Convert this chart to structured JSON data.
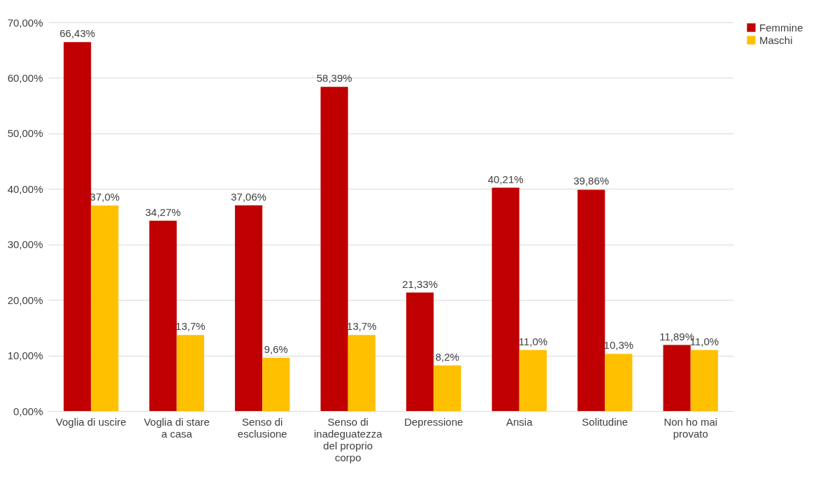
{
  "chart_data": {
    "type": "bar",
    "categories": [
      "Voglia di uscire",
      "Voglia di stare a casa",
      "Senso di esclusione",
      "Senso di inadeguatezza del proprio corpo",
      "Depressione",
      "Ansia",
      "Solitudine",
      "Non ho mai provato"
    ],
    "series": [
      {
        "name": "Femmine",
        "color": "#c00000",
        "values": [
          66.43,
          34.27,
          37.06,
          58.39,
          21.33,
          40.21,
          39.86,
          11.89
        ],
        "value_labels": [
          "66,43%",
          "34,27%",
          "37,06%",
          "58,39%",
          "21,33%",
          "40,21%",
          "39,86%",
          "11,89%"
        ]
      },
      {
        "name": "Maschi",
        "color": "#ffc000",
        "values": [
          37.0,
          13.7,
          9.6,
          13.7,
          8.2,
          11.0,
          10.3,
          11.0
        ],
        "value_labels": [
          "37,0%",
          "13,7%",
          "9,6%",
          "13,7%",
          "8,2%",
          "11,0%",
          "10,3%",
          "11,0%"
        ]
      }
    ],
    "ylim": [
      0,
      70
    ],
    "yticks": [
      {
        "value": 0,
        "label": "0,00%"
      },
      {
        "value": 10,
        "label": "10,00%"
      },
      {
        "value": 20,
        "label": "20,00%"
      },
      {
        "value": 30,
        "label": "30,00%"
      },
      {
        "value": 40,
        "label": "40,00%"
      },
      {
        "value": 50,
        "label": "50,00%"
      },
      {
        "value": 60,
        "label": "60,00%"
      },
      {
        "value": 70,
        "label": "70,00%"
      }
    ],
    "grid": "y",
    "legend": "right"
  }
}
